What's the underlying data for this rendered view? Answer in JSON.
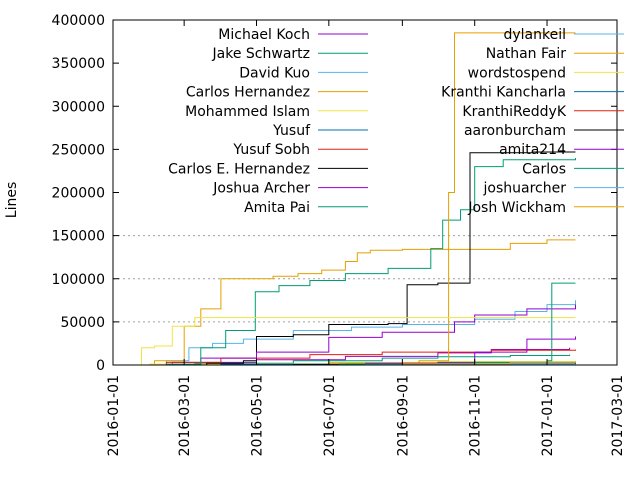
{
  "chart_data": {
    "type": "line",
    "ylabel": "Lines",
    "ylim": [
      0,
      400000
    ],
    "yticks": [
      0,
      50000,
      100000,
      150000,
      200000,
      250000,
      300000,
      350000,
      400000
    ],
    "xlim": [
      "2016-01-01",
      "2017-03-01"
    ],
    "xticks": [
      "2016-01-01",
      "2016-03-01",
      "2016-05-01",
      "2016-07-01",
      "2016-09-01",
      "2016-11-01",
      "2017-01-01",
      "2017-03-01"
    ],
    "grid": "horizontal dashed lines at 50000, 100000 and 150000",
    "legend": "two columns, top",
    "series": [
      {
        "name": "Michael Koch",
        "color": "#9400d3",
        "points": [
          [
            "2016-01-15",
            0
          ],
          [
            "2016-02-20",
            3000
          ],
          [
            "2016-05-01",
            6000
          ],
          [
            "2016-07-15",
            10000
          ],
          [
            "2016-10-01",
            14000
          ],
          [
            "2016-11-15",
            18000
          ],
          [
            "2017-01-20",
            20000
          ]
        ]
      },
      {
        "name": "Jake Schwartz",
        "color": "#009e73",
        "points": [
          [
            "2016-02-01",
            0
          ],
          [
            "2016-03-10",
            2000
          ],
          [
            "2016-06-01",
            5000
          ],
          [
            "2016-08-15",
            8000
          ],
          [
            "2016-10-01",
            9500
          ],
          [
            "2016-12-01",
            11000
          ],
          [
            "2017-01-20",
            12000
          ]
        ]
      },
      {
        "name": "David Kuo",
        "color": "#56b4e9",
        "points": [
          [
            "2016-01-20",
            0
          ],
          [
            "2016-02-15",
            5000
          ],
          [
            "2016-03-05",
            20000
          ],
          [
            "2016-03-25",
            25000
          ],
          [
            "2016-04-20",
            30000
          ],
          [
            "2016-06-01",
            40000
          ],
          [
            "2016-07-20",
            44000
          ],
          [
            "2016-09-01",
            47000
          ],
          [
            "2016-11-01",
            53000
          ],
          [
            "2016-12-05",
            62000
          ],
          [
            "2017-01-01",
            70000
          ],
          [
            "2017-01-25",
            75000
          ]
        ]
      },
      {
        "name": "Carlos Hernandez",
        "color": "#e69f00",
        "points": [
          [
            "2016-01-25",
            0
          ],
          [
            "2016-02-05",
            5000
          ],
          [
            "2016-03-01",
            45000
          ],
          [
            "2016-03-15",
            65000
          ],
          [
            "2016-04-01",
            100000
          ],
          [
            "2016-05-15",
            103000
          ],
          [
            "2016-06-05",
            106000
          ],
          [
            "2016-06-25",
            110000
          ],
          [
            "2016-07-15",
            120000
          ],
          [
            "2016-07-25",
            130000
          ],
          [
            "2016-08-05",
            133000
          ],
          [
            "2016-09-01",
            134000
          ],
          [
            "2016-12-01",
            141000
          ],
          [
            "2017-01-01",
            145000
          ],
          [
            "2017-01-25",
            145000
          ]
        ]
      },
      {
        "name": "Mohammed Islam",
        "color": "#f0e442",
        "points": [
          [
            "2016-01-25",
            0
          ],
          [
            "2016-02-01",
            1000
          ],
          [
            "2016-04-01",
            1500
          ],
          [
            "2016-07-01",
            3000
          ],
          [
            "2016-10-01",
            4000
          ],
          [
            "2017-01-25",
            5000
          ]
        ]
      },
      {
        "name": "Yusuf",
        "color": "#0072b2",
        "points": [
          [
            "2016-02-10",
            0
          ],
          [
            "2016-04-01",
            1000
          ],
          [
            "2016-07-01",
            2000
          ],
          [
            "2016-10-01",
            2500
          ],
          [
            "2017-01-25",
            3000
          ]
        ]
      },
      {
        "name": "Yusuf Sobh",
        "color": "#e51e10",
        "points": [
          [
            "2016-01-25",
            0
          ],
          [
            "2016-02-15",
            3000
          ],
          [
            "2016-04-01",
            8000
          ],
          [
            "2016-06-15",
            12000
          ],
          [
            "2016-08-15",
            15000
          ],
          [
            "2016-11-15",
            17000
          ],
          [
            "2017-01-25",
            18000
          ]
        ]
      },
      {
        "name": "Carlos E. Hernandez",
        "color": "#000000",
        "points": [
          [
            "2016-02-15",
            0
          ],
          [
            "2016-03-20",
            2000
          ],
          [
            "2016-04-20",
            5000
          ],
          [
            "2016-05-01",
            33000
          ],
          [
            "2016-06-01",
            35000
          ],
          [
            "2016-07-01",
            47000
          ],
          [
            "2016-08-20",
            48000
          ],
          [
            "2016-09-05",
            93000
          ],
          [
            "2016-10-01",
            95000
          ],
          [
            "2016-10-28",
            246000
          ],
          [
            "2016-12-20",
            247000
          ],
          [
            "2017-01-25",
            247000
          ]
        ]
      },
      {
        "name": "Joshua Archer",
        "color": "#9400d3",
        "points": [
          [
            "2016-02-10",
            0
          ],
          [
            "2016-03-15",
            8000
          ],
          [
            "2016-05-01",
            15000
          ],
          [
            "2016-07-01",
            32000
          ],
          [
            "2016-08-15",
            38000
          ],
          [
            "2016-10-15",
            50000
          ],
          [
            "2016-11-01",
            58000
          ],
          [
            "2016-12-15",
            65000
          ],
          [
            "2017-01-25",
            70000
          ]
        ]
      },
      {
        "name": "Amita Pai",
        "color": "#009e73",
        "points": [
          [
            "2016-02-05",
            0
          ],
          [
            "2016-02-15",
            1000
          ],
          [
            "2016-03-15",
            20000
          ],
          [
            "2016-04-05",
            40000
          ],
          [
            "2016-04-30",
            85000
          ],
          [
            "2016-05-20",
            92000
          ],
          [
            "2016-06-15",
            98000
          ],
          [
            "2016-07-15",
            106000
          ],
          [
            "2016-08-20",
            112000
          ],
          [
            "2016-09-25",
            135000
          ],
          [
            "2016-10-05",
            168000
          ],
          [
            "2016-10-20",
            180000
          ],
          [
            "2016-11-01",
            230000
          ],
          [
            "2016-11-25",
            238000
          ],
          [
            "2017-01-25",
            240000
          ]
        ]
      },
      {
        "name": "dylankeil",
        "color": "#56b4e9",
        "points": [
          [
            "2016-03-01",
            0
          ],
          [
            "2016-07-01",
            500
          ],
          [
            "2017-01-25",
            1000
          ]
        ]
      },
      {
        "name": "Nathan Fair",
        "color": "#e69f00",
        "points": [
          [
            "2016-06-01",
            0
          ],
          [
            "2016-07-01",
            2000
          ],
          [
            "2016-09-15",
            5000
          ],
          [
            "2016-10-10",
            200000
          ],
          [
            "2016-10-15",
            385000
          ],
          [
            "2017-01-25",
            385000
          ]
        ]
      },
      {
        "name": "wordstospend",
        "color": "#f0e442",
        "points": [
          [
            "2016-01-20",
            0
          ],
          [
            "2016-01-25",
            20000
          ],
          [
            "2016-02-05",
            22000
          ],
          [
            "2016-02-20",
            45000
          ],
          [
            "2016-03-10",
            55000
          ],
          [
            "2016-10-01",
            55000
          ],
          [
            "2017-01-25",
            55000
          ]
        ]
      },
      {
        "name": "Kranthi Kancharla",
        "color": "#0072b2",
        "points": [
          [
            "2016-05-01",
            0
          ],
          [
            "2016-07-15",
            1000
          ],
          [
            "2016-10-01",
            3000
          ],
          [
            "2017-01-25",
            4000
          ]
        ]
      },
      {
        "name": "KranthiReddyK",
        "color": "#e51e10",
        "points": [
          [
            "2016-06-01",
            0
          ],
          [
            "2016-09-01",
            1000
          ],
          [
            "2017-01-25",
            2000
          ]
        ]
      },
      {
        "name": "aaronburcham",
        "color": "#000000",
        "points": [
          [
            "2016-03-01",
            0
          ],
          [
            "2016-06-01",
            500
          ],
          [
            "2016-10-01",
            1000
          ],
          [
            "2017-01-25",
            2000
          ]
        ]
      },
      {
        "name": "amita214",
        "color": "#9400d3",
        "points": [
          [
            "2016-04-01",
            0
          ],
          [
            "2016-08-01",
            2000
          ],
          [
            "2016-11-01",
            15000
          ],
          [
            "2016-12-15",
            30000
          ],
          [
            "2017-01-25",
            33000
          ]
        ]
      },
      {
        "name": "Carlos",
        "color": "#009e73",
        "points": [
          [
            "2016-06-01",
            0
          ],
          [
            "2016-07-10",
            1000
          ],
          [
            "2016-11-01",
            3000
          ],
          [
            "2017-01-01",
            5000
          ],
          [
            "2017-01-05",
            95000
          ],
          [
            "2017-01-25",
            95000
          ]
        ]
      },
      {
        "name": "joshuarcher",
        "color": "#56b4e9",
        "points": [
          [
            "2016-05-01",
            0
          ],
          [
            "2016-08-01",
            500
          ],
          [
            "2016-12-01",
            1000
          ],
          [
            "2017-01-25",
            1500
          ]
        ]
      },
      {
        "name": "Josh Wickham",
        "color": "#e69f00",
        "points": [
          [
            "2016-06-01",
            0
          ],
          [
            "2016-09-01",
            1500
          ],
          [
            "2016-12-01",
            3000
          ],
          [
            "2017-01-25",
            4000
          ]
        ]
      }
    ]
  }
}
